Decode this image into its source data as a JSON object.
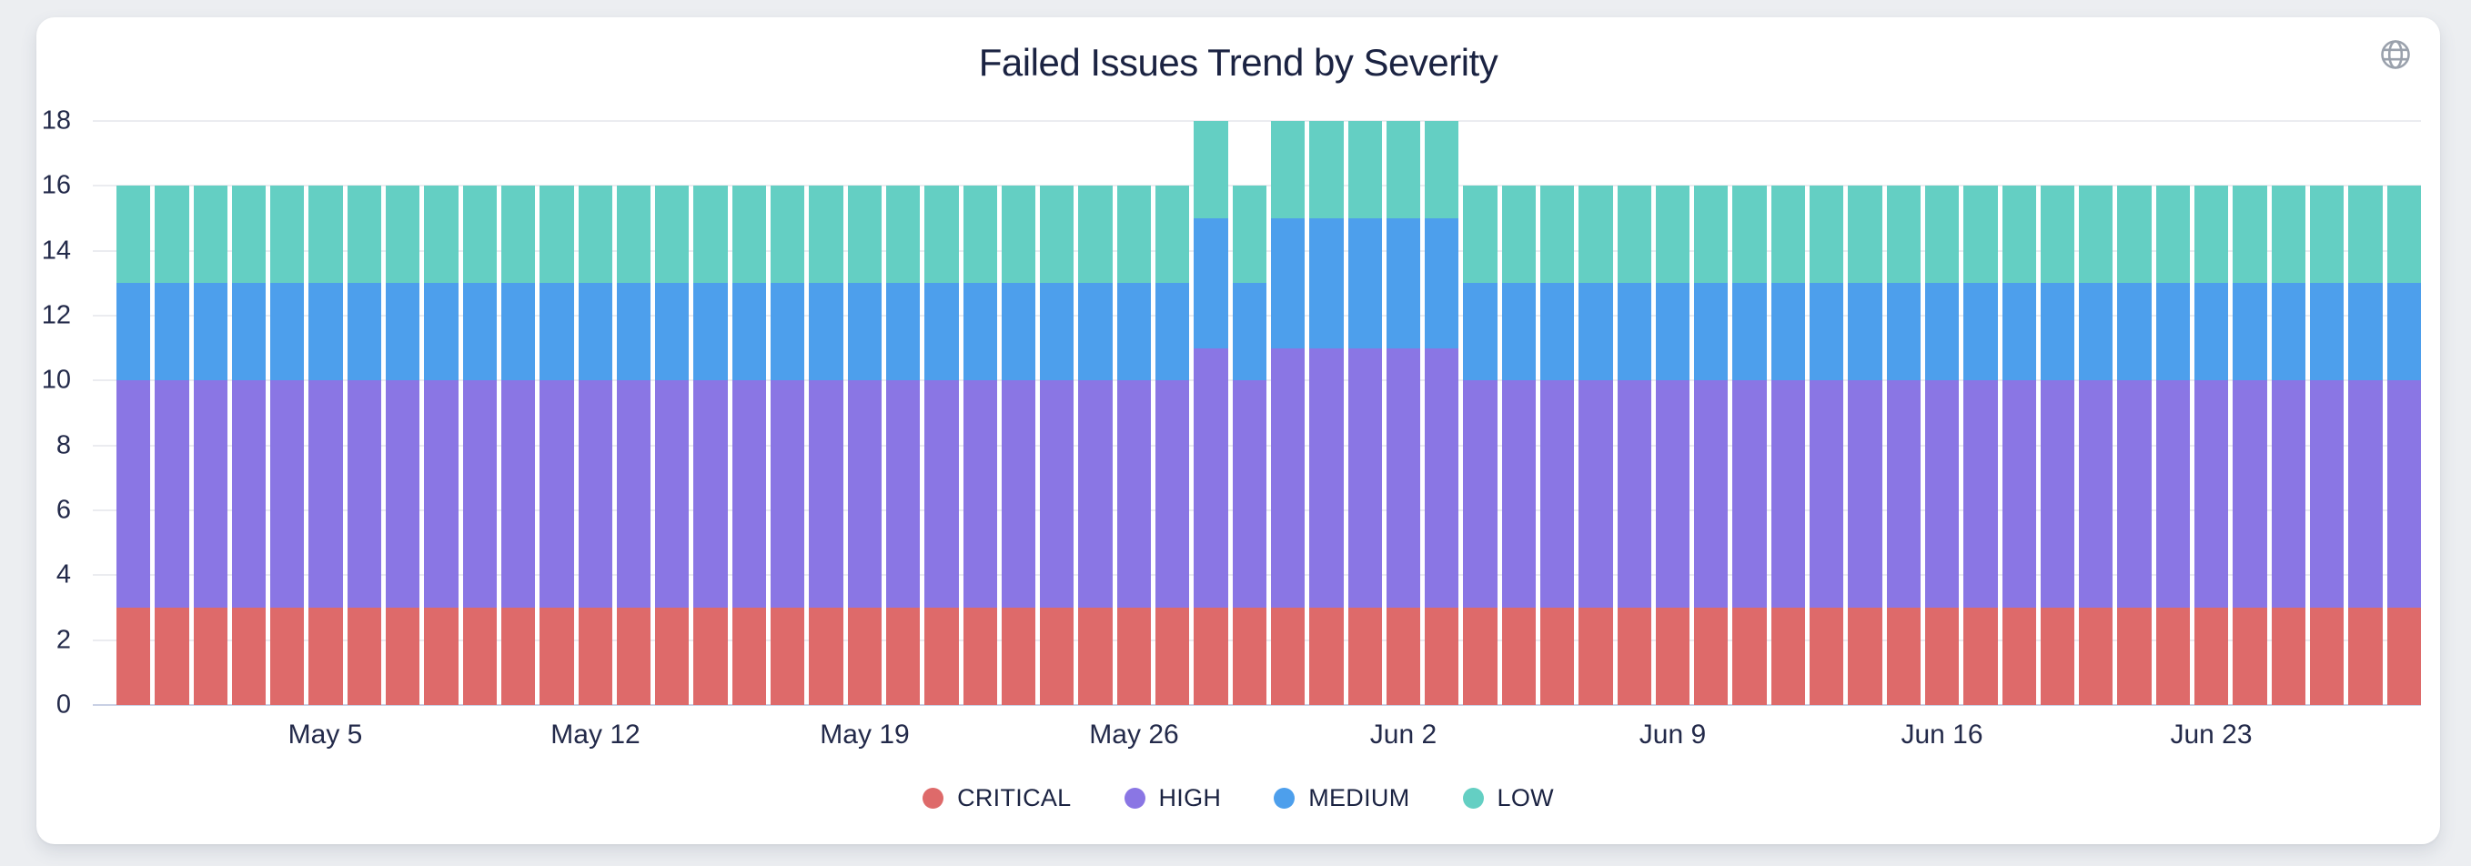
{
  "page": {
    "background_color": "#eceef1"
  },
  "card": {
    "background_color": "#ffffff"
  },
  "header": {
    "title": "Failed Issues Trend by Severity",
    "globe_icon": "globe-icon"
  },
  "colors": {
    "critical": "#de6a6a",
    "high": "#8a76e4",
    "medium": "#4d9fec",
    "low": "#64cfc3",
    "text_dark": "#1b2342",
    "gridline": "#ebecf0",
    "axis_line": "#c9d0e4",
    "icon_gray": "#9aa1ac"
  },
  "chart_data": {
    "type": "bar",
    "stacked": true,
    "title": "Failed Issues Trend by Severity",
    "grid": "horizontal",
    "legend_position": "bottom",
    "ylim": [
      0,
      18
    ],
    "yticks": [
      0,
      2,
      4,
      6,
      8,
      10,
      12,
      14,
      16,
      18
    ],
    "x": [
      "Apr 30",
      "May 1",
      "May 2",
      "May 3",
      "May 4",
      "May 5",
      "May 6",
      "May 7",
      "May 8",
      "May 9",
      "May 10",
      "May 11",
      "May 12",
      "May 13",
      "May 14",
      "May 15",
      "May 16",
      "May 17",
      "May 18",
      "May 19",
      "May 20",
      "May 21",
      "May 22",
      "May 23",
      "May 24",
      "May 25",
      "May 26",
      "May 27",
      "May 28",
      "May 29",
      "May 30",
      "May 31",
      "Jun 1",
      "Jun 2",
      "Jun 3",
      "Jun 4",
      "Jun 5",
      "Jun 6",
      "Jun 7",
      "Jun 8",
      "Jun 9",
      "Jun 10",
      "Jun 11",
      "Jun 12",
      "Jun 13",
      "Jun 14",
      "Jun 15",
      "Jun 16",
      "Jun 17",
      "Jun 18",
      "Jun 19",
      "Jun 20",
      "Jun 21",
      "Jun 22",
      "Jun 23",
      "Jun 24",
      "Jun 25",
      "Jun 26",
      "Jun 27",
      "Jun 28"
    ],
    "xticks": [
      {
        "index": 5,
        "label": "May 5"
      },
      {
        "index": 12,
        "label": "May 12"
      },
      {
        "index": 19,
        "label": "May 19"
      },
      {
        "index": 26,
        "label": "May 26"
      },
      {
        "index": 33,
        "label": "Jun 2"
      },
      {
        "index": 40,
        "label": "Jun 9"
      },
      {
        "index": 47,
        "label": "Jun 16"
      },
      {
        "index": 54,
        "label": "Jun 23"
      }
    ],
    "series": [
      {
        "name": "CRITICAL",
        "color": "#de6a6a",
        "values": [
          3,
          3,
          3,
          3,
          3,
          3,
          3,
          3,
          3,
          3,
          3,
          3,
          3,
          3,
          3,
          3,
          3,
          3,
          3,
          3,
          3,
          3,
          3,
          3,
          3,
          3,
          3,
          3,
          3,
          3,
          3,
          3,
          3,
          3,
          3,
          3,
          3,
          3,
          3,
          3,
          3,
          3,
          3,
          3,
          3,
          3,
          3,
          3,
          3,
          3,
          3,
          3,
          3,
          3,
          3,
          3,
          3,
          3,
          3,
          3
        ]
      },
      {
        "name": "HIGH",
        "color": "#8a76e4",
        "values": [
          7,
          7,
          7,
          7,
          7,
          7,
          7,
          7,
          7,
          7,
          7,
          7,
          7,
          7,
          7,
          7,
          7,
          7,
          7,
          7,
          7,
          7,
          7,
          7,
          7,
          7,
          7,
          7,
          8,
          7,
          8,
          8,
          8,
          8,
          8,
          7,
          7,
          7,
          7,
          7,
          7,
          7,
          7,
          7,
          7,
          7,
          7,
          7,
          7,
          7,
          7,
          7,
          7,
          7,
          7,
          7,
          7,
          7,
          7,
          7
        ]
      },
      {
        "name": "MEDIUM",
        "color": "#4d9fec",
        "values": [
          3,
          3,
          3,
          3,
          3,
          3,
          3,
          3,
          3,
          3,
          3,
          3,
          3,
          3,
          3,
          3,
          3,
          3,
          3,
          3,
          3,
          3,
          3,
          3,
          3,
          3,
          3,
          3,
          4,
          3,
          4,
          4,
          4,
          4,
          4,
          3,
          3,
          3,
          3,
          3,
          3,
          3,
          3,
          3,
          3,
          3,
          3,
          3,
          3,
          3,
          3,
          3,
          3,
          3,
          3,
          3,
          3,
          3,
          3,
          3
        ]
      },
      {
        "name": "LOW",
        "color": "#64cfc3",
        "values": [
          3,
          3,
          3,
          3,
          3,
          3,
          3,
          3,
          3,
          3,
          3,
          3,
          3,
          3,
          3,
          3,
          3,
          3,
          3,
          3,
          3,
          3,
          3,
          3,
          3,
          3,
          3,
          3,
          3,
          3,
          3,
          3,
          3,
          3,
          3,
          3,
          3,
          3,
          3,
          3,
          3,
          3,
          3,
          3,
          3,
          3,
          3,
          3,
          3,
          3,
          3,
          3,
          3,
          3,
          3,
          3,
          3,
          3,
          3,
          3
        ]
      }
    ]
  }
}
